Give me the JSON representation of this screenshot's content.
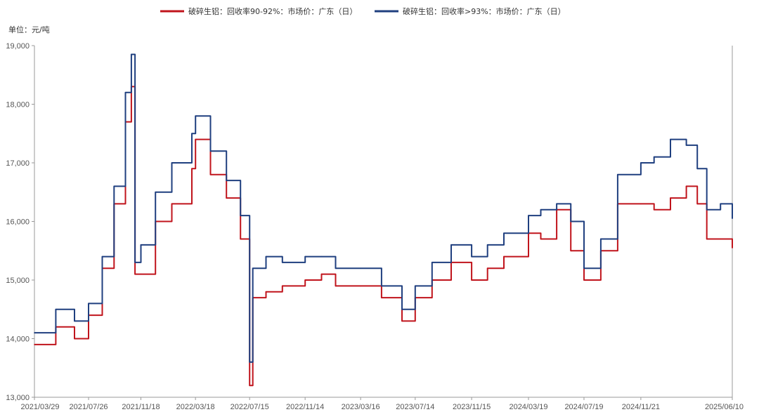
{
  "chart_data": {
    "type": "line",
    "unit_label": "单位：元/吨",
    "ylim": [
      13000,
      19000
    ],
    "yticks": [
      13000,
      14000,
      15000,
      16000,
      17000,
      18000,
      19000
    ],
    "ytick_labels": [
      "13,000",
      "14,000",
      "15,000",
      "16,000",
      "17,000",
      "18,000",
      "19,000"
    ],
    "xtick_labels": [
      "2021/03/29",
      "2021/07/26",
      "2021/11/18",
      "2022/03/18",
      "2022/07/15",
      "2022/11/14",
      "2023/03/16",
      "2023/07/14",
      "2023/11/15",
      "2024/03/19",
      "2024/07/19",
      "2024/11/21",
      "2025/06/10"
    ],
    "grid": false,
    "legend_position": "top",
    "x_dates": [
      "2021/03/29",
      "2021/05/15",
      "2021/06/25",
      "2021/07/26",
      "2021/08/25",
      "2021/09/20",
      "2021/10/15",
      "2021/10/28",
      "2021/11/05",
      "2021/11/18",
      "2021/12/20",
      "2022/01/25",
      "2022/03/10",
      "2022/03/18",
      "2022/04/20",
      "2022/05/25",
      "2022/06/25",
      "2022/07/15",
      "2022/07/22",
      "2022/08/20",
      "2022/09/25",
      "2022/11/14",
      "2022/12/20",
      "2023/01/20",
      "2023/03/16",
      "2023/05/01",
      "2023/06/15",
      "2023/07/14",
      "2023/08/20",
      "2023/10/01",
      "2023/11/15",
      "2023/12/20",
      "2024/01/25",
      "2024/03/19",
      "2024/04/15",
      "2024/05/20",
      "2024/06/20",
      "2024/07/19",
      "2024/08/25",
      "2024/10/01",
      "2024/11/21",
      "2024/12/20",
      "2025/01/25",
      "2025/03/01",
      "2025/03/25",
      "2025/04/15",
      "2025/05/15",
      "2025/06/10"
    ],
    "series": [
      {
        "name": "破碎生铝：回收率90-92%：市场价：广东（日）",
        "color": "#c0141c",
        "values": [
          13900,
          14200,
          14000,
          14400,
          15200,
          16300,
          17700,
          18300,
          15100,
          15100,
          16000,
          16300,
          16900,
          17400,
          16800,
          16400,
          15700,
          13200,
          14700,
          14800,
          14900,
          15000,
          15100,
          14900,
          14900,
          14700,
          14300,
          14700,
          15000,
          15300,
          15000,
          15200,
          15400,
          15800,
          15700,
          16200,
          15500,
          15000,
          15500,
          16300,
          16300,
          16200,
          16400,
          16600,
          16300,
          15700,
          15700,
          15550
        ]
      },
      {
        "name": "破碎生铝：回收率>93%：市场价：广东（日）",
        "color": "#1f3f7f",
        "values": [
          14100,
          14500,
          14300,
          14600,
          15400,
          16600,
          18200,
          18850,
          15300,
          15600,
          16500,
          17000,
          17500,
          17800,
          17200,
          16700,
          16100,
          13600,
          15200,
          15400,
          15300,
          15400,
          15400,
          15200,
          15200,
          14900,
          14500,
          14900,
          15300,
          15600,
          15400,
          15600,
          15800,
          16100,
          16200,
          16300,
          16000,
          15200,
          15700,
          16800,
          17000,
          17100,
          17400,
          17300,
          16900,
          16200,
          16300,
          16050
        ]
      }
    ]
  }
}
